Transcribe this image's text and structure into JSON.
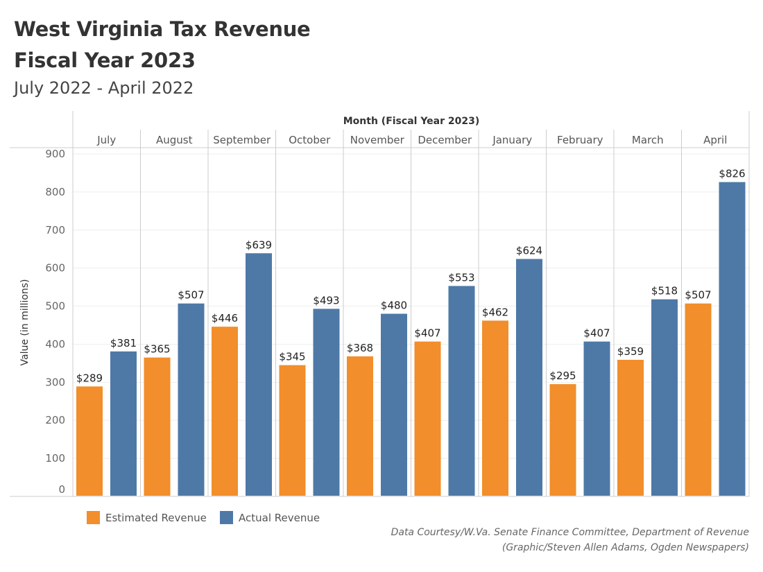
{
  "title_line1": "West Virginia Tax Revenue",
  "title_line2": "Fiscal Year 2023",
  "subtitle": "July 2022 - April 2022",
  "credit_line1": "Data Courtesy/W.Va. Senate Finance Committee, Department of Revenue",
  "credit_line2": "(Graphic/Steven Allen Adams, Ogden Newspapers)",
  "chart_data": {
    "type": "bar",
    "xlabel": "Month (Fiscal Year 2023)",
    "ylabel": "Value (in millions)",
    "ylim": [
      0,
      900
    ],
    "yticks": [
      0,
      100,
      200,
      300,
      400,
      500,
      600,
      700,
      800,
      900
    ],
    "grid": true,
    "legend_position": "bottom-left",
    "categories": [
      "July",
      "August",
      "September",
      "October",
      "November",
      "December",
      "January",
      "February",
      "March",
      "April"
    ],
    "series": [
      {
        "name": "Estimated Revenue",
        "color": "#f28e2b",
        "values": [
          289,
          365,
          446,
          345,
          368,
          407,
          462,
          295,
          359,
          507
        ]
      },
      {
        "name": "Actual Revenue",
        "color": "#4e79a7",
        "values": [
          381,
          507,
          639,
          493,
          480,
          553,
          624,
          407,
          518,
          826
        ]
      }
    ],
    "data_label_prefix": "$"
  }
}
